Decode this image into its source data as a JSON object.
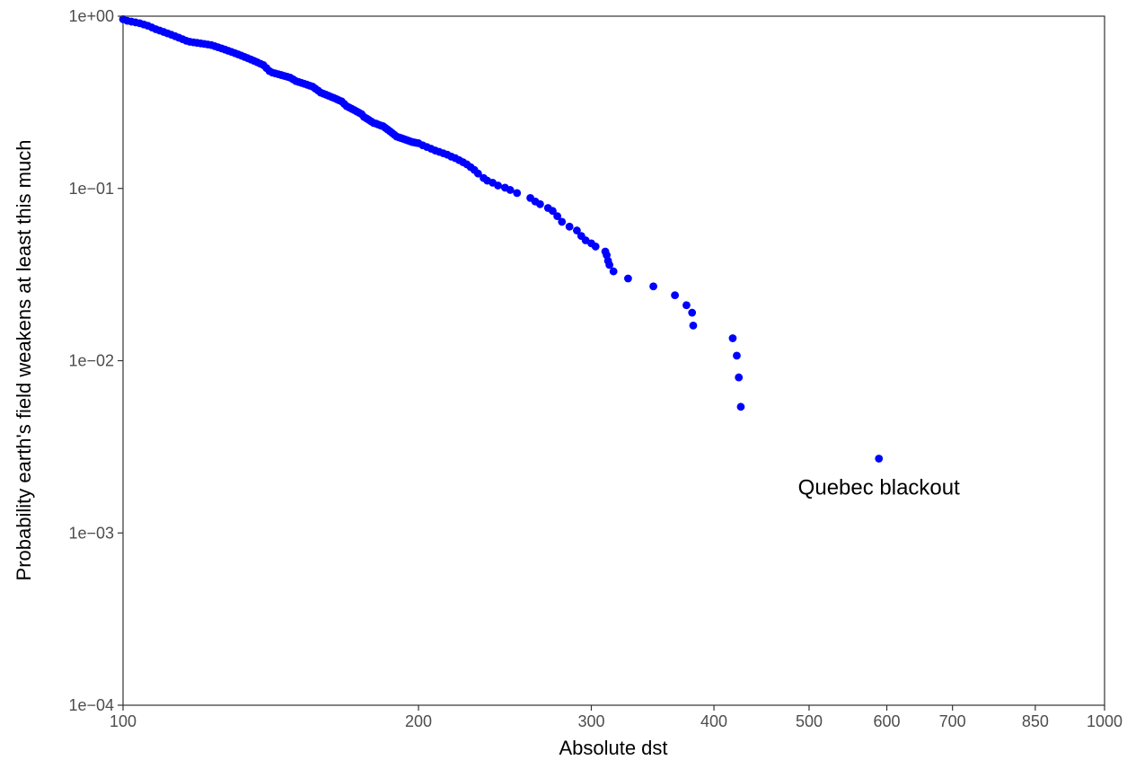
{
  "chart_data": {
    "type": "scatter",
    "title": "",
    "xlabel": "Absolute dst",
    "ylabel": "Probability earth's field weakens at least this much",
    "x_scale": "log",
    "y_scale": "log",
    "xlim": [
      100,
      1000
    ],
    "ylim": [
      0.0001,
      1
    ],
    "x_ticks": [
      {
        "value": 100,
        "label": "100"
      },
      {
        "value": 200,
        "label": "200"
      },
      {
        "value": 300,
        "label": "300"
      },
      {
        "value": 400,
        "label": "400"
      },
      {
        "value": 500,
        "label": "500"
      },
      {
        "value": 600,
        "label": "600"
      },
      {
        "value": 700,
        "label": "700"
      },
      {
        "value": 850,
        "label": "850"
      },
      {
        "value": 1000,
        "label": "1000"
      }
    ],
    "y_ticks": [
      {
        "value": 0.0001,
        "label": "1e−04"
      },
      {
        "value": 0.001,
        "label": "1e−03"
      },
      {
        "value": 0.01,
        "label": "1e−02"
      },
      {
        "value": 0.1,
        "label": "1e−01"
      },
      {
        "value": 1,
        "label": "1e+00"
      }
    ],
    "grid": false,
    "point_color": "#0000ff",
    "annotations": [
      {
        "text": "Quebec blackout",
        "x": 589,
        "y": 0.0027
      }
    ],
    "series": [
      {
        "points": [
          [
            100,
            0.96
          ],
          [
            101,
            0.94
          ],
          [
            102,
            0.93
          ],
          [
            103,
            0.92
          ],
          [
            104,
            0.91
          ],
          [
            105,
            0.895
          ],
          [
            106,
            0.88
          ],
          [
            107,
            0.86
          ],
          [
            108,
            0.84
          ],
          [
            109,
            0.825
          ],
          [
            110,
            0.81
          ],
          [
            111,
            0.795
          ],
          [
            112,
            0.78
          ],
          [
            113,
            0.765
          ],
          [
            114,
            0.75
          ],
          [
            115,
            0.735
          ],
          [
            116,
            0.72
          ],
          [
            117,
            0.71
          ],
          [
            118,
            0.705
          ],
          [
            119,
            0.7
          ],
          [
            120,
            0.695
          ],
          [
            121,
            0.69
          ],
          [
            122,
            0.685
          ],
          [
            123,
            0.68
          ],
          [
            124,
            0.67
          ],
          [
            125,
            0.66
          ],
          [
            126,
            0.65
          ],
          [
            127,
            0.64
          ],
          [
            128,
            0.63
          ],
          [
            129,
            0.62
          ],
          [
            130,
            0.61
          ],
          [
            131,
            0.6
          ],
          [
            132,
            0.59
          ],
          [
            133,
            0.58
          ],
          [
            134,
            0.57
          ],
          [
            135,
            0.56
          ],
          [
            136,
            0.55
          ],
          [
            137,
            0.54
          ],
          [
            138,
            0.53
          ],
          [
            139,
            0.52
          ],
          [
            140,
            0.5
          ],
          [
            141,
            0.48
          ],
          [
            142,
            0.47
          ],
          [
            143,
            0.465
          ],
          [
            144,
            0.46
          ],
          [
            145,
            0.455
          ],
          [
            146,
            0.45
          ],
          [
            147,
            0.445
          ],
          [
            148,
            0.44
          ],
          [
            149,
            0.43
          ],
          [
            150,
            0.42
          ],
          [
            151,
            0.415
          ],
          [
            152,
            0.41
          ],
          [
            153,
            0.405
          ],
          [
            154,
            0.4
          ],
          [
            155,
            0.395
          ],
          [
            156,
            0.39
          ],
          [
            157,
            0.38
          ],
          [
            158,
            0.37
          ],
          [
            159,
            0.36
          ],
          [
            160,
            0.355
          ],
          [
            161,
            0.35
          ],
          [
            162,
            0.345
          ],
          [
            163,
            0.34
          ],
          [
            164,
            0.335
          ],
          [
            165,
            0.33
          ],
          [
            166,
            0.325
          ],
          [
            167,
            0.32
          ],
          [
            168,
            0.31
          ],
          [
            169,
            0.3
          ],
          [
            170,
            0.295
          ],
          [
            171,
            0.29
          ],
          [
            172,
            0.285
          ],
          [
            173,
            0.28
          ],
          [
            174,
            0.275
          ],
          [
            175,
            0.27
          ],
          [
            176,
            0.26
          ],
          [
            177,
            0.255
          ],
          [
            178,
            0.25
          ],
          [
            179,
            0.245
          ],
          [
            180,
            0.24
          ],
          [
            181,
            0.238
          ],
          [
            182,
            0.235
          ],
          [
            183,
            0.232
          ],
          [
            184,
            0.23
          ],
          [
            185,
            0.225
          ],
          [
            186,
            0.22
          ],
          [
            187,
            0.215
          ],
          [
            188,
            0.21
          ],
          [
            189,
            0.205
          ],
          [
            190,
            0.2
          ],
          [
            191,
            0.198
          ],
          [
            192,
            0.196
          ],
          [
            193,
            0.194
          ],
          [
            194,
            0.192
          ],
          [
            195,
            0.19
          ],
          [
            196,
            0.188
          ],
          [
            197,
            0.186
          ],
          [
            198,
            0.185
          ],
          [
            199,
            0.184
          ],
          [
            200,
            0.183
          ],
          [
            202,
            0.178
          ],
          [
            204,
            0.174
          ],
          [
            206,
            0.17
          ],
          [
            208,
            0.166
          ],
          [
            210,
            0.163
          ],
          [
            212,
            0.16
          ],
          [
            214,
            0.157
          ],
          [
            216,
            0.153
          ],
          [
            218,
            0.15
          ],
          [
            220,
            0.146
          ],
          [
            222,
            0.142
          ],
          [
            224,
            0.138
          ],
          [
            226,
            0.133
          ],
          [
            228,
            0.128
          ],
          [
            230,
            0.122
          ],
          [
            233,
            0.115
          ],
          [
            235,
            0.111
          ],
          [
            238,
            0.108
          ],
          [
            241,
            0.104
          ],
          [
            245,
            0.101
          ],
          [
            248,
            0.098
          ],
          [
            252,
            0.094
          ],
          [
            260,
            0.088
          ],
          [
            263,
            0.084
          ],
          [
            266,
            0.081
          ],
          [
            271,
            0.077
          ],
          [
            274,
            0.074
          ],
          [
            277,
            0.069
          ],
          [
            280,
            0.064
          ],
          [
            285,
            0.06
          ],
          [
            290,
            0.057
          ],
          [
            293,
            0.053
          ],
          [
            296,
            0.05
          ],
          [
            300,
            0.048
          ],
          [
            303,
            0.046
          ],
          [
            310,
            0.043
          ],
          [
            311,
            0.041
          ],
          [
            312,
            0.038
          ],
          [
            313,
            0.036
          ],
          [
            316,
            0.033
          ],
          [
            327,
            0.03
          ],
          [
            347,
            0.027
          ],
          [
            365,
            0.024
          ],
          [
            375,
            0.021
          ],
          [
            380,
            0.019
          ],
          [
            381,
            0.016
          ],
          [
            418,
            0.0135
          ],
          [
            422,
            0.0107
          ],
          [
            424,
            0.008
          ],
          [
            426,
            0.0054
          ],
          [
            589,
            0.0027
          ]
        ]
      }
    ]
  }
}
